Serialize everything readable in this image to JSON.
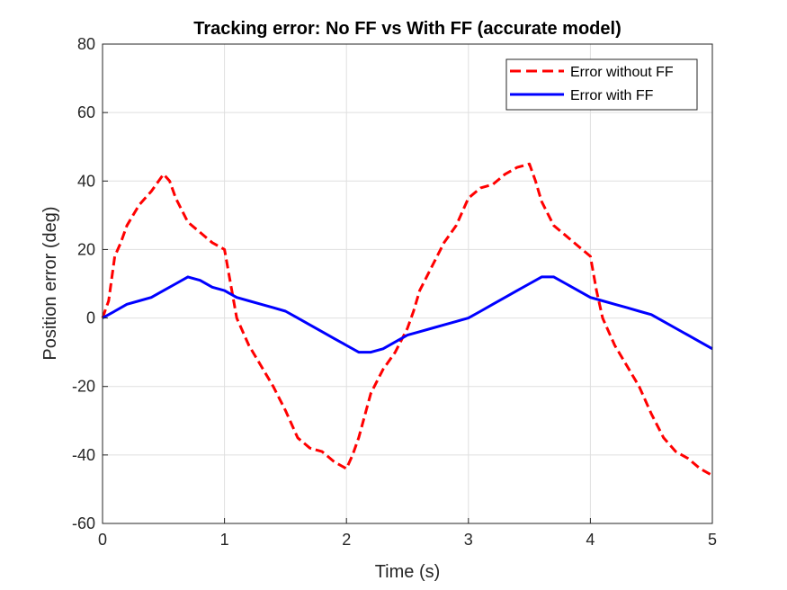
{
  "chart_data": {
    "type": "line",
    "title": "Tracking error: No FF vs With FF (accurate model)",
    "xlabel": "Time (s)",
    "ylabel": "Position error (deg)",
    "xlim": [
      0,
      5
    ],
    "ylim": [
      -60,
      80
    ],
    "xticks": [
      0,
      1,
      2,
      3,
      4,
      5
    ],
    "yticks": [
      -60,
      -40,
      -20,
      0,
      20,
      40,
      60,
      80
    ],
    "grid": true,
    "legend_position": "top-right",
    "series": [
      {
        "name": "Error without FF",
        "color": "#ff0000",
        "style": "dashed",
        "x": [
          0,
          0.05,
          0.1,
          0.15,
          0.2,
          0.3,
          0.4,
          0.5,
          0.55,
          0.6,
          0.7,
          0.8,
          0.9,
          1.0,
          1.05,
          1.1,
          1.2,
          1.3,
          1.4,
          1.5,
          1.6,
          1.7,
          1.8,
          1.9,
          2.0,
          2.05,
          2.1,
          2.2,
          2.3,
          2.4,
          2.5,
          2.55,
          2.6,
          2.7,
          2.8,
          2.9,
          3.0,
          3.1,
          3.2,
          3.3,
          3.4,
          3.5,
          3.55,
          3.6,
          3.7,
          3.8,
          3.9,
          4.0,
          4.05,
          4.1,
          4.2,
          4.3,
          4.4,
          4.5,
          4.6,
          4.7,
          4.8,
          4.9,
          5.0
        ],
        "y": [
          0,
          5,
          18,
          22,
          27,
          33,
          37,
          42,
          40,
          35,
          28,
          25,
          22,
          20,
          10,
          0,
          -8,
          -14,
          -20,
          -27,
          -35,
          -38,
          -39,
          -42,
          -44,
          -40,
          -35,
          -22,
          -15,
          -10,
          -3,
          2,
          8,
          15,
          22,
          27,
          35,
          38,
          39,
          42,
          44,
          45,
          40,
          34,
          27,
          24,
          21,
          18,
          8,
          0,
          -8,
          -14,
          -20,
          -28,
          -35,
          -39,
          -41,
          -44,
          -46
        ]
      },
      {
        "name": "Error with FF",
        "color": "#0000ff",
        "style": "solid",
        "x": [
          0,
          0.1,
          0.2,
          0.3,
          0.4,
          0.5,
          0.6,
          0.7,
          0.8,
          0.9,
          1.0,
          1.1,
          1.2,
          1.3,
          1.4,
          1.5,
          1.6,
          1.7,
          1.8,
          1.9,
          2.0,
          2.1,
          2.2,
          2.3,
          2.4,
          2.5,
          2.6,
          2.7,
          2.8,
          2.9,
          3.0,
          3.1,
          3.2,
          3.3,
          3.4,
          3.5,
          3.6,
          3.7,
          3.8,
          3.9,
          4.0,
          4.1,
          4.2,
          4.3,
          4.4,
          4.5,
          4.6,
          4.7,
          4.8,
          4.9,
          5.0
        ],
        "y": [
          0,
          2,
          4,
          5,
          6,
          8,
          10,
          12,
          11,
          9,
          8,
          6,
          5,
          4,
          3,
          2,
          0,
          -2,
          -4,
          -6,
          -8,
          -10,
          -10,
          -9,
          -7,
          -5,
          -4,
          -3,
          -2,
          -1,
          0,
          2,
          4,
          6,
          8,
          10,
          12,
          12,
          10,
          8,
          6,
          5,
          4,
          3,
          2,
          1,
          -1,
          -3,
          -5,
          -7,
          -9
        ]
      }
    ]
  }
}
